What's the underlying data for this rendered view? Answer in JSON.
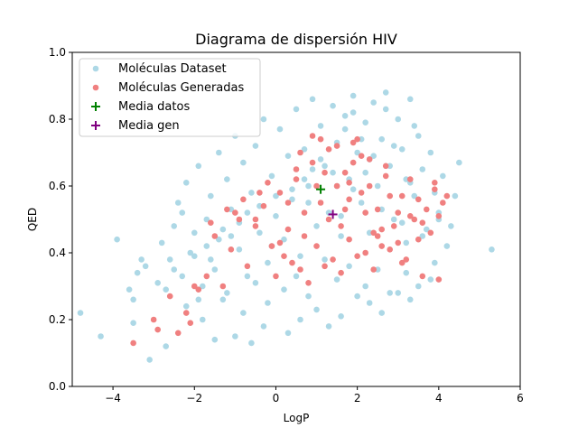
{
  "chart_data": {
    "type": "scatter",
    "title": "Diagrama de dispersión HIV",
    "xlabel": "LogP",
    "ylabel": "QED",
    "xlim": [
      -5,
      6
    ],
    "ylim": [
      0.0,
      1.0
    ],
    "xticks": [
      -4,
      -2,
      0,
      2,
      4,
      6
    ],
    "yticks": [
      0.0,
      0.2,
      0.4,
      0.6,
      0.8,
      1.0
    ],
    "xtick_labels": [
      "−4",
      "−2",
      "0",
      "2",
      "4",
      "6"
    ],
    "ytick_labels": [
      "0.0",
      "0.2",
      "0.4",
      "0.6",
      "0.8",
      "1.0"
    ],
    "grid": false,
    "legend_position": "upper-left",
    "series": [
      {
        "name": "Moléculas Dataset",
        "marker": "circle",
        "color": "#add8e6",
        "x": [
          -4.8,
          -4.3,
          -3.9,
          -3.6,
          -3.5,
          -3.3,
          -3.1,
          -2.9,
          -2.7,
          -2.5,
          -2.3,
          -2.1,
          -3.5,
          -3.4,
          -3.2,
          -2.8,
          -2.6,
          -2.4,
          -2.2,
          -2.0,
          -1.9,
          -1.8,
          -1.7,
          -1.6,
          -1.5,
          -1.4,
          -1.3,
          -1.2,
          -1.1,
          -1.0,
          -0.9,
          -0.8,
          -0.7,
          -0.6,
          -0.5,
          -0.4,
          -0.3,
          -0.2,
          -0.1,
          0.0,
          0.1,
          0.2,
          0.3,
          0.4,
          0.5,
          0.6,
          0.7,
          0.8,
          0.9,
          1.0,
          1.1,
          1.2,
          1.3,
          1.4,
          1.5,
          1.6,
          1.7,
          1.8,
          1.9,
          2.0,
          2.1,
          2.2,
          2.3,
          2.4,
          2.5,
          2.6,
          2.7,
          2.8,
          2.9,
          3.0,
          3.1,
          3.2,
          3.3,
          3.4,
          3.5,
          3.6,
          3.7,
          3.8,
          3.9,
          4.0,
          4.1,
          4.2,
          4.4,
          4.5,
          5.3,
          -2.2,
          -1.8,
          -1.5,
          -1.2,
          -0.8,
          -0.5,
          -0.2,
          0.2,
          0.5,
          0.8,
          1.2,
          1.5,
          1.8,
          2.2,
          2.5,
          2.8,
          3.2,
          3.5,
          3.8,
          -1.0,
          -0.6,
          -0.3,
          0.3,
          0.6,
          1.0,
          1.3,
          1.6,
          2.0,
          2.3,
          2.6,
          3.0,
          3.3,
          1.7,
          1.9,
          2.1,
          2.4,
          2.7,
          3.4,
          3.3,
          2.9,
          2.2,
          1.5,
          0.9,
          0.4,
          -0.4,
          -1.3,
          -1.7,
          -2.0,
          -2.5,
          -1.9,
          -1.1,
          -0.7,
          0.0,
          0.7,
          1.1,
          1.4,
          1.9,
          2.6,
          3.1,
          3.6,
          4.0,
          -2.7,
          -2.3,
          -1.6,
          -1.4,
          -0.9,
          -0.1,
          0.8,
          1.6,
          2.3,
          3.2,
          3.9,
          4.3
        ],
        "y": [
          0.22,
          0.15,
          0.44,
          0.29,
          0.26,
          0.38,
          0.08,
          0.31,
          0.12,
          0.48,
          0.52,
          0.4,
          0.19,
          0.34,
          0.36,
          0.43,
          0.38,
          0.55,
          0.61,
          0.46,
          0.66,
          0.3,
          0.5,
          0.57,
          0.14,
          0.7,
          0.26,
          0.62,
          0.53,
          0.75,
          0.41,
          0.67,
          0.33,
          0.58,
          0.72,
          0.46,
          0.8,
          0.37,
          0.63,
          0.51,
          0.77,
          0.44,
          0.69,
          0.56,
          0.83,
          0.39,
          0.71,
          0.6,
          0.86,
          0.48,
          0.78,
          0.66,
          0.52,
          0.84,
          0.73,
          0.45,
          0.81,
          0.62,
          0.87,
          0.7,
          0.55,
          0.79,
          0.68,
          0.85,
          0.6,
          0.74,
          0.88,
          0.66,
          0.5,
          0.8,
          0.71,
          0.62,
          0.86,
          0.57,
          0.75,
          0.65,
          0.47,
          0.7,
          0.58,
          0.52,
          0.63,
          0.42,
          0.57,
          0.67,
          0.41,
          0.24,
          0.2,
          0.35,
          0.28,
          0.22,
          0.31,
          0.25,
          0.29,
          0.33,
          0.27,
          0.38,
          0.32,
          0.36,
          0.3,
          0.35,
          0.28,
          0.34,
          0.3,
          0.32,
          0.15,
          0.13,
          0.18,
          0.16,
          0.2,
          0.23,
          0.18,
          0.21,
          0.27,
          0.25,
          0.22,
          0.28,
          0.26,
          0.77,
          0.82,
          0.74,
          0.69,
          0.83,
          0.78,
          0.61,
          0.72,
          0.64,
          0.6,
          0.65,
          0.59,
          0.54,
          0.47,
          0.42,
          0.39,
          0.35,
          0.26,
          0.45,
          0.52,
          0.57,
          0.62,
          0.68,
          0.64,
          0.59,
          0.53,
          0.49,
          0.45,
          0.5,
          0.29,
          0.33,
          0.38,
          0.44,
          0.49,
          0.42,
          0.55,
          0.51,
          0.46,
          0.43,
          0.37,
          0.48
        ]
      },
      {
        "name": "Moléculas Generadas",
        "marker": "circle",
        "color": "#f08080",
        "x": [
          -3.5,
          -3.0,
          -2.9,
          -2.6,
          -2.4,
          -2.2,
          -2.1,
          -1.9,
          -1.7,
          -1.5,
          -1.3,
          -1.1,
          -0.9,
          -0.7,
          -0.5,
          -0.3,
          -0.1,
          0.1,
          0.3,
          0.5,
          0.7,
          0.9,
          1.1,
          1.3,
          1.5,
          1.7,
          1.9,
          2.1,
          2.3,
          2.5,
          2.7,
          2.9,
          3.1,
          3.3,
          3.5,
          3.7,
          3.9,
          4.1,
          0.2,
          0.6,
          1.0,
          1.4,
          1.8,
          2.2,
          2.6,
          3.0,
          3.4,
          3.8,
          4.2,
          0.0,
          0.4,
          0.8,
          1.2,
          1.6,
          2.0,
          2.4,
          2.8,
          3.2,
          3.6,
          4.0,
          -0.4,
          -0.8,
          -1.2,
          -1.6,
          -2.0,
          0.9,
          1.5,
          2.1,
          2.7,
          3.3,
          1.8,
          2.0,
          2.2,
          1.6,
          2.5,
          1.0,
          0.5,
          0.3,
          1.2,
          1.9,
          2.3,
          2.8,
          3.6,
          0.1,
          0.7,
          1.3,
          1.7,
          2.4,
          3.0,
          3.5,
          4.0,
          3.9,
          -0.5,
          -0.2,
          0.6,
          1.1,
          1.8,
          2.6,
          3.1,
          -1.0
        ],
        "y": [
          0.13,
          0.2,
          0.17,
          0.27,
          0.16,
          0.22,
          0.19,
          0.29,
          0.33,
          0.45,
          0.3,
          0.41,
          0.5,
          0.36,
          0.48,
          0.54,
          0.42,
          0.58,
          0.47,
          0.62,
          0.52,
          0.67,
          0.55,
          0.71,
          0.6,
          0.64,
          0.73,
          0.58,
          0.68,
          0.53,
          0.63,
          0.48,
          0.57,
          0.51,
          0.56,
          0.53,
          0.59,
          0.55,
          0.39,
          0.35,
          0.42,
          0.38,
          0.44,
          0.4,
          0.47,
          0.43,
          0.5,
          0.46,
          0.57,
          0.33,
          0.37,
          0.31,
          0.36,
          0.34,
          0.39,
          0.35,
          0.41,
          0.38,
          0.33,
          0.32,
          0.58,
          0.56,
          0.53,
          0.49,
          0.3,
          0.75,
          0.72,
          0.69,
          0.66,
          0.62,
          0.61,
          0.74,
          0.52,
          0.48,
          0.45,
          0.6,
          0.65,
          0.55,
          0.64,
          0.67,
          0.6,
          0.57,
          0.49,
          0.43,
          0.45,
          0.5,
          0.53,
          0.46,
          0.52,
          0.44,
          0.51,
          0.61,
          0.5,
          0.61,
          0.7,
          0.74,
          0.56,
          0.42,
          0.37,
          0.52
        ]
      },
      {
        "name": "Media datos",
        "marker": "plus",
        "color": "#008000",
        "x": [
          1.1
        ],
        "y": [
          0.59
        ]
      },
      {
        "name": "Media gen",
        "marker": "plus",
        "color": "#800080",
        "x": [
          1.4
        ],
        "y": [
          0.515
        ]
      }
    ]
  }
}
